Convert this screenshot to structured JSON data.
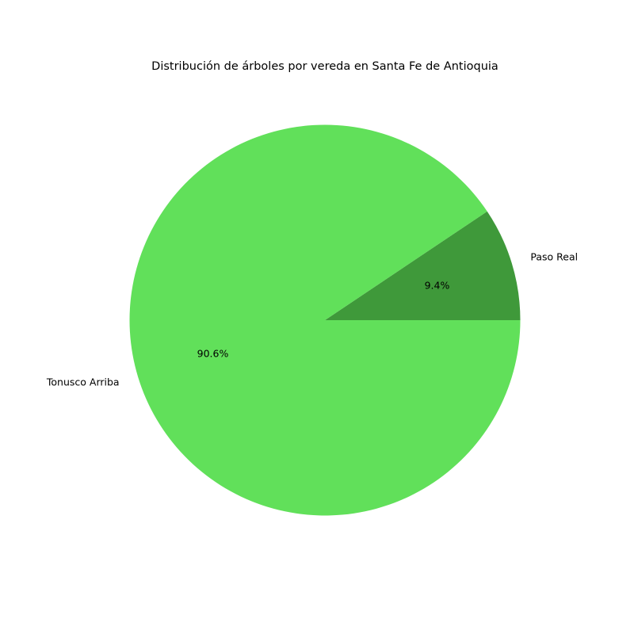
{
  "chart_data": {
    "type": "pie",
    "title": "Distribución de árboles por vereda en Santa Fe de Antioquia",
    "slices": [
      {
        "label": "Paso Real",
        "percent": 9.4,
        "percent_label": "9.4%",
        "color": "#3f993a"
      },
      {
        "label": "Tonusco Arriba",
        "percent": 90.6,
        "percent_label": "90.6%",
        "color": "#61e05a"
      }
    ],
    "start_angle_deg": 0,
    "direction": "counterclockwise",
    "legend": "none"
  }
}
